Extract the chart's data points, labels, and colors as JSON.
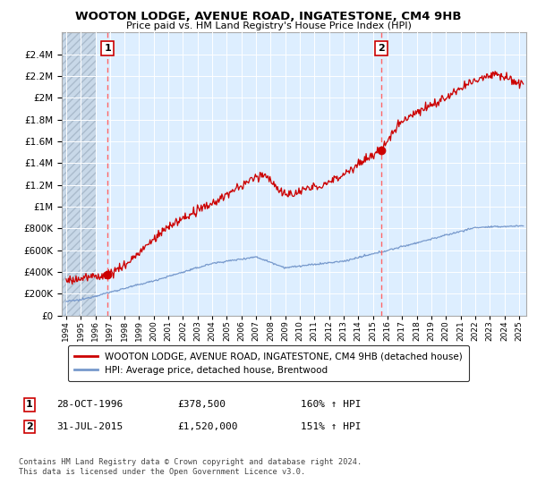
{
  "title": "WOOTON LODGE, AVENUE ROAD, INGATESTONE, CM4 9HB",
  "subtitle": "Price paid vs. HM Land Registry's House Price Index (HPI)",
  "legend_line1": "WOOTON LODGE, AVENUE ROAD, INGATESTONE, CM4 9HB (detached house)",
  "legend_line2": "HPI: Average price, detached house, Brentwood",
  "transaction1_date": "28-OCT-1996",
  "transaction1_price": "£378,500",
  "transaction1_hpi": "160% ↑ HPI",
  "transaction1_x": 1996.83,
  "transaction1_y": 378500,
  "transaction2_date": "31-JUL-2015",
  "transaction2_price": "£1,520,000",
  "transaction2_hpi": "151% ↑ HPI",
  "transaction2_x": 2015.58,
  "transaction2_y": 1520000,
  "copyright": "Contains HM Land Registry data © Crown copyright and database right 2024.\nThis data is licensed under the Open Government Licence v3.0.",
  "red_color": "#cc0000",
  "blue_color": "#7799cc",
  "dashed_color": "#ff6666",
  "label_box_color": "#cc0000",
  "chart_bg": "#ddeeff",
  "ylim": [
    0,
    2600000
  ],
  "xlim_start": 1993.7,
  "xlim_end": 2025.5,
  "yticks": [
    0,
    200000,
    400000,
    600000,
    800000,
    1000000,
    1200000,
    1400000,
    1600000,
    1800000,
    2000000,
    2200000,
    2400000
  ]
}
